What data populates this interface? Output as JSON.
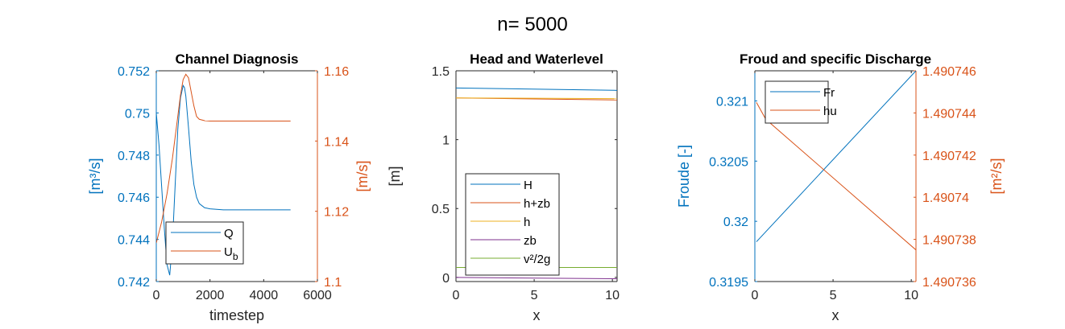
{
  "figure": {
    "suptitle": "n= 5000"
  },
  "colors": {
    "blue": "#0072BD",
    "orange": "#D95319",
    "yellow": "#EDB120",
    "purple": "#7E2F8E",
    "green": "#77AC30",
    "axis": "#262626"
  },
  "chart_data": [
    {
      "type": "line",
      "title": "Channel Diagnosis",
      "xlabel": "timestep",
      "ylabel": "[m³/s]",
      "ylabel_right": "[m/s]",
      "xlim": [
        0,
        6000
      ],
      "ylim": [
        0.742,
        0.752
      ],
      "ylim_right": [
        1.1,
        1.16
      ],
      "xticks": [
        0,
        2000,
        4000,
        6000
      ],
      "xtick_labels": [
        "0",
        "2000",
        "4000",
        "6000"
      ],
      "yticks": [
        0.742,
        0.744,
        0.746,
        0.748,
        0.75,
        0.752
      ],
      "ytick_labels": [
        "0.742",
        "0.744",
        "0.746",
        "0.748",
        "0.75",
        "0.752"
      ],
      "yticks_right": [
        1.1,
        1.12,
        1.14,
        1.16
      ],
      "ytick_labels_right": [
        "1.1",
        "1.12",
        "1.14",
        "1.16"
      ],
      "legend_position": "bottom-left",
      "series": [
        {
          "name": "Q",
          "axis": "left",
          "color": "#0072BD",
          "x": [
            0,
            100,
            200,
            300,
            400,
            500,
            600,
            700,
            800,
            900,
            1000,
            1050,
            1100,
            1200,
            1300,
            1400,
            1500,
            1600,
            1700,
            1800,
            2000,
            2500,
            3000,
            4000,
            5000
          ],
          "y": [
            0.75,
            0.7485,
            0.7465,
            0.7445,
            0.7428,
            0.7423,
            0.7438,
            0.7465,
            0.7492,
            0.7507,
            0.7513,
            0.7512,
            0.7508,
            0.7493,
            0.7477,
            0.7466,
            0.746,
            0.7457,
            0.7456,
            0.7455,
            0.74545,
            0.7454,
            0.7454,
            0.7454,
            0.7454
          ]
        },
        {
          "name": "U",
          "name_subscript": "b",
          "axis": "right",
          "color": "#D95319",
          "x": [
            0,
            200,
            400,
            600,
            800,
            900,
            1000,
            1100,
            1200,
            1300,
            1400,
            1500,
            1600,
            1800,
            2000,
            3000,
            4000,
            5000
          ],
          "y": [
            1.111,
            1.117,
            1.125,
            1.135,
            1.147,
            1.153,
            1.1575,
            1.159,
            1.158,
            1.154,
            1.15,
            1.147,
            1.1462,
            1.1458,
            1.1457,
            1.1457,
            1.1457,
            1.1457
          ]
        }
      ]
    },
    {
      "type": "line",
      "title": "Head and Waterlevel",
      "xlabel": "x",
      "ylabel": "[m]",
      "xlim": [
        0,
        10.3
      ],
      "ylim": [
        -0.03,
        1.5
      ],
      "xticks": [
        0,
        5,
        10
      ],
      "xtick_labels": [
        "0",
        "5",
        "10"
      ],
      "yticks": [
        0,
        0.5,
        1,
        1.5
      ],
      "ytick_labels": [
        "0",
        "0.5",
        "1",
        "1.5"
      ],
      "legend_position": "bottom-left",
      "series": [
        {
          "name": "H",
          "color": "#0072BD",
          "x": [
            0,
            10.3
          ],
          "y": [
            1.375,
            1.358
          ]
        },
        {
          "name": "h+zb",
          "color": "#D95319",
          "x": [
            0,
            10.3
          ],
          "y": [
            1.303,
            1.288
          ]
        },
        {
          "name": "h",
          "color": "#EDB120",
          "x": [
            0,
            10.3
          ],
          "y": [
            1.303,
            1.298
          ]
        },
        {
          "name": "zb",
          "color": "#7E2F8E",
          "x": [
            0,
            10.3
          ],
          "y": [
            0.0,
            -0.01
          ]
        },
        {
          "name": "v²/2g",
          "color": "#77AC30",
          "x": [
            0,
            10.3
          ],
          "y": [
            0.072,
            0.072
          ]
        }
      ]
    },
    {
      "type": "line",
      "title": "Froud and specific Discharge",
      "xlabel": "x",
      "ylabel": "Froude [-]",
      "ylabel_right": "[m²/s]",
      "xlim": [
        0,
        10.3
      ],
      "ylim": [
        0.3195,
        0.32125
      ],
      "ylim_right": [
        1.490736,
        1.490746
      ],
      "xticks": [
        0,
        5,
        10
      ],
      "xtick_labels": [
        "0",
        "5",
        "10"
      ],
      "yticks": [
        0.3195,
        0.32,
        0.3205,
        0.321
      ],
      "ytick_labels": [
        "0.3195",
        "0.32",
        "0.3205",
        "0.321"
      ],
      "yticks_right": [
        1.490736,
        1.490738,
        1.49074,
        1.490742,
        1.490744,
        1.490746
      ],
      "ytick_labels_right": [
        "1.490736",
        "1.490738",
        "1.49074",
        "1.490742",
        "1.490744",
        "1.490746"
      ],
      "legend_position": "top-left",
      "series": [
        {
          "name": "Fr",
          "axis": "left",
          "color": "#0072BD",
          "x": [
            0.1,
            10.3
          ],
          "y": [
            0.31983,
            0.32125
          ]
        },
        {
          "name": "hu",
          "axis": "right",
          "color": "#D95319",
          "x": [
            0.1,
            0.7,
            10.3
          ],
          "y": [
            1.4907445,
            1.4907437,
            1.4907375
          ]
        }
      ]
    }
  ]
}
